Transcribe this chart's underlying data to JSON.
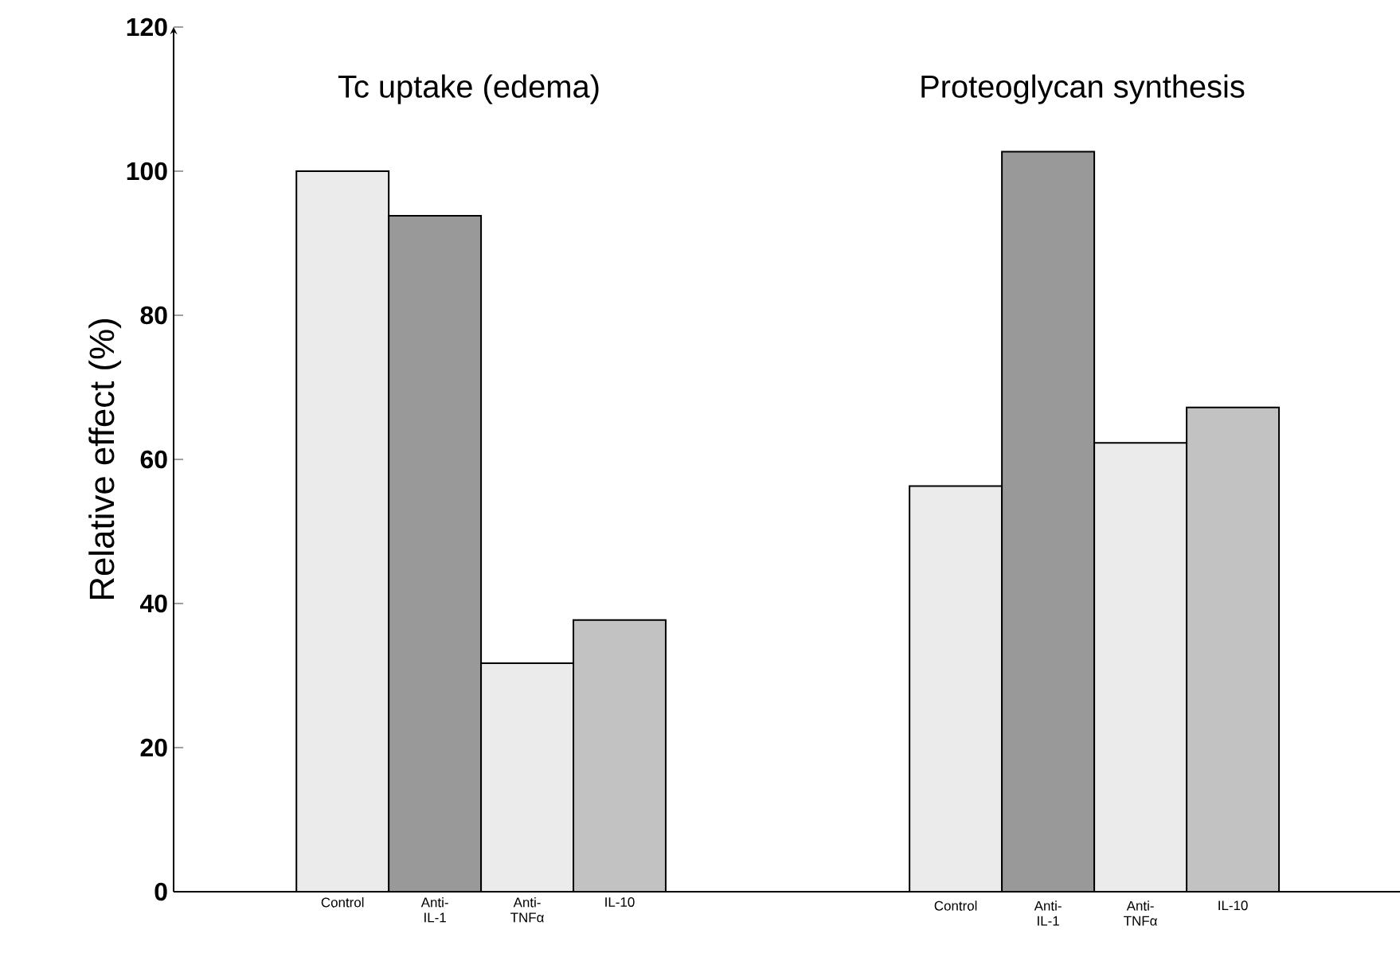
{
  "chart_data": [
    {
      "type": "bar",
      "title": "Tc uptake (edema)",
      "ylabel": "Relative effect (%)",
      "categories": [
        "Control",
        "Anti-IL-1",
        "Anti-TNFα",
        "IL-10"
      ],
      "values": [
        100,
        93.8,
        31.7,
        37.7
      ],
      "color": "#000000",
      "ylim": [
        0,
        120
      ],
      "yticks": [
        0,
        20,
        40,
        60,
        80,
        100,
        120
      ]
    },
    {
      "type": "bar",
      "title": "Proteoglycan synthesis",
      "categories": [
        "Control",
        "Anti-IL-1",
        "Anti-TNFα",
        "IL-10"
      ],
      "values": [
        56.3,
        102.7,
        62.3,
        67.2
      ],
      "color": "#000000",
      "ylim": [
        0,
        120
      ],
      "yticks": [
        0,
        20,
        40,
        60,
        80,
        100,
        120
      ],
      "tick_labels": "x"
    }
  ]
}
